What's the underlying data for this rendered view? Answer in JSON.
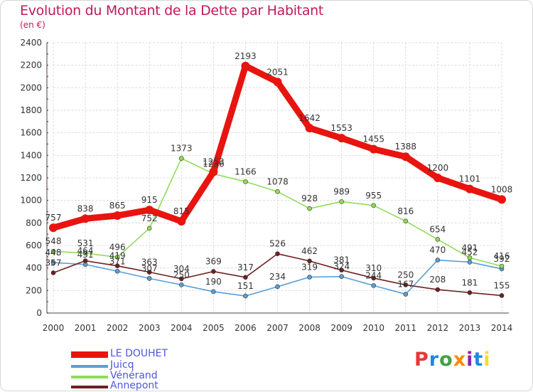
{
  "header": {
    "title": "Evolution du Montant de la Dette par Habitant",
    "unit": "(en €)"
  },
  "logo": {
    "text": "Proxiti",
    "colors": [
      "#e53935",
      "#1e88e5",
      "#43a047",
      "#fb8c00",
      "#8e24aa",
      "#1e88e5",
      "#fdd835"
    ]
  },
  "chart_data": {
    "type": "line",
    "x": [
      "2000",
      "2001",
      "2002",
      "2003",
      "2004",
      "2005",
      "2006",
      "2007",
      "2008",
      "2009",
      "2010",
      "2011",
      "2012",
      "2013",
      "2014"
    ],
    "ylim": [
      0,
      2400
    ],
    "yticks": [
      0,
      200,
      400,
      600,
      800,
      1000,
      1200,
      1400,
      1600,
      1800,
      2000,
      2200,
      2400
    ],
    "grid": true,
    "legend_position": "bottom-left",
    "series": [
      {
        "name": "LE DOUHET",
        "color": "#e8140f",
        "values": [
          757,
          838,
          865,
          915,
          815,
          1253,
          2193,
          2051,
          1642,
          1553,
          1455,
          1388,
          1200,
          1101,
          1008
        ]
      },
      {
        "name": "Juicq",
        "color": "#5a9fd6",
        "values": [
          448,
          431,
          371,
          307,
          250,
          190,
          151,
          234,
          319,
          324,
          244,
          167,
          470,
          452,
          392
        ]
      },
      {
        "name": "Vénérand",
        "color": "#90dc5a",
        "values": [
          548,
          531,
          496,
          752,
          1373,
          1236,
          1166,
          1078,
          928,
          989,
          955,
          816,
          654,
          491,
          416
        ]
      },
      {
        "name": "Annepont",
        "color": "#6e2121",
        "values": [
          357,
          464,
          419,
          363,
          304,
          369,
          317,
          526,
          462,
          381,
          310,
          250,
          208,
          181,
          155
        ]
      }
    ]
  }
}
